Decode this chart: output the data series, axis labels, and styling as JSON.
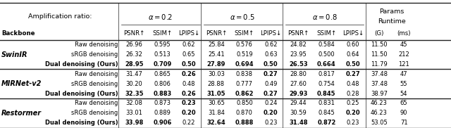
{
  "rows": [
    [
      "Raw denoising",
      "26.96",
      "0.595",
      "0.62",
      "25.84",
      "0.576",
      "0.62",
      "24.82",
      "0.584",
      "0.60",
      "11.50",
      "45"
    ],
    [
      "sRGB denoising",
      "26.32",
      "0.513",
      "0.65",
      "25.41",
      "0.519",
      "0.63",
      "23.95",
      "0.500",
      "0.64",
      "11.50",
      "212"
    ],
    [
      "Dual denoising (Ours)",
      "28.95",
      "0.709",
      "0.50",
      "27.89",
      "0.694",
      "0.50",
      "26.53",
      "0.664",
      "0.50",
      "11.79",
      "121"
    ],
    [
      "Raw denoising",
      "31.47",
      "0.865",
      "0.26",
      "30.03",
      "0.838",
      "0.27",
      "28.80",
      "0.817",
      "0.27",
      "37.48",
      "47"
    ],
    [
      "sRGB denoising",
      "30.20",
      "0.806",
      "0.48",
      "28.88",
      "0.777",
      "0.49",
      "27.60",
      "0.754",
      "0.48",
      "37.48",
      "55"
    ],
    [
      "Dual denoising (Ours)",
      "32.35",
      "0.883",
      "0.26",
      "31.05",
      "0.862",
      "0.27",
      "29.93",
      "0.845",
      "0.28",
      "38.97",
      "54"
    ],
    [
      "Raw denoising",
      "32.08",
      "0.873",
      "0.23",
      "30.65",
      "0.850",
      "0.24",
      "29.44",
      "0.831",
      "0.25",
      "46.23",
      "65"
    ],
    [
      "sRGB denoising",
      "33.01",
      "0.889",
      "0.20",
      "31.84",
      "0.870",
      "0.20",
      "30.59",
      "0.845",
      "0.20",
      "46.23",
      "90"
    ],
    [
      "Dual denoising (Ours)",
      "33.98",
      "0.906",
      "0.22",
      "32.64",
      "0.888",
      "0.23",
      "31.48",
      "0.872",
      "0.23",
      "53.05",
      "71"
    ]
  ],
  "bold_per_row": {
    "0": [],
    "1": [],
    "2": [
      1,
      2,
      3,
      4,
      5,
      6,
      7,
      8,
      9
    ],
    "3": [
      3,
      6,
      9
    ],
    "4": [],
    "5": [
      1,
      2,
      3,
      4,
      5,
      6,
      7,
      8
    ],
    "6": [
      3
    ],
    "7": [
      3,
      6,
      9
    ],
    "8": [
      1,
      2,
      4,
      5,
      7,
      8
    ]
  },
  "backbones": [
    "SwinIR",
    "MIRNet-v2",
    "Restormer"
  ],
  "backbone_rows": [
    [
      0,
      2
    ],
    [
      3,
      5
    ],
    [
      6,
      8
    ]
  ],
  "alpha_labels": [
    "α = 0.2",
    "α = 0.5",
    "α = 0.8"
  ],
  "subheaders": [
    "PSNR↑",
    "SSIM↑",
    "LPIPS↓"
  ],
  "param_headers": [
    "Params",
    "Runtime",
    "(G)",
    "(ms)"
  ],
  "amplification_label": "Amplification ratio:",
  "backbone_header": "Backbone",
  "line_color": "#222222",
  "thick_lw": 1.0,
  "thin_lw": 0.5,
  "fs_title": 6.8,
  "fs_alpha": 7.2,
  "fs_subh": 6.2,
  "fs_data": 6.0,
  "fs_backbone": 7.0,
  "fs_method": 6.0
}
